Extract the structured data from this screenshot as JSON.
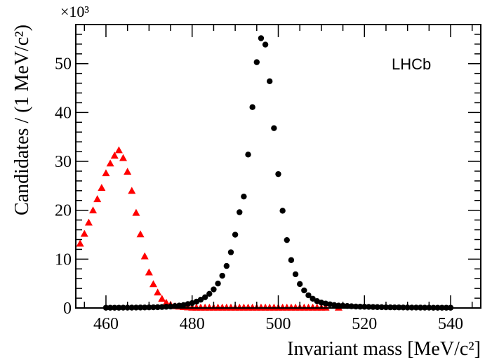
{
  "chart_data": {
    "type": "scatter",
    "xlabel": "Invariant mass [MeV/c²]",
    "ylabel": "Candidates / (1 MeV/c²)",
    "y_multiplier": "×10³",
    "annotation": "LHCb",
    "xlim": [
      453,
      547
    ],
    "ylim": [
      0,
      58
    ],
    "x_ticks": [
      460,
      480,
      500,
      520,
      540
    ],
    "y_ticks": [
      0,
      10,
      20,
      30,
      40,
      50
    ],
    "grid": false,
    "legend": "none",
    "series": [
      {
        "marker": "triangle",
        "color": "#ff0000",
        "x": [
          454,
          455,
          456,
          457,
          458,
          459,
          460,
          461,
          462,
          463,
          464,
          465,
          466,
          467,
          468,
          469,
          470,
          471,
          472,
          473,
          474,
          475,
          476,
          477,
          478,
          479,
          480,
          481,
          482,
          483,
          484,
          485,
          486,
          487,
          488,
          489,
          490,
          491,
          492,
          493,
          494,
          495,
          496,
          497,
          498,
          499,
          500,
          501,
          502,
          503,
          504,
          505,
          506,
          507,
          508,
          509,
          510,
          511,
          514
        ],
        "y": [
          13.2,
          15.2,
          17.5,
          20.0,
          22.3,
          24.6,
          27.6,
          29.6,
          31.2,
          32.3,
          30.7,
          27.9,
          24.0,
          19.5,
          15.1,
          10.6,
          7.3,
          4.9,
          3.2,
          1.9,
          1.1,
          0.7,
          0.4,
          0.3,
          0.2,
          0.15,
          0.1,
          0.1,
          0.1,
          0.1,
          0.1,
          0.1,
          0.1,
          0.1,
          0.1,
          0.1,
          0.1,
          0.1,
          0.1,
          0.1,
          0.1,
          0.1,
          0.1,
          0.1,
          0.1,
          0.1,
          0.1,
          0.1,
          0.1,
          0.1,
          0.1,
          0.1,
          0.1,
          0.1,
          0.1,
          0.1,
          0.1,
          0.1,
          0.1
        ]
      },
      {
        "marker": "circle",
        "color": "#000000",
        "x": [
          460,
          461,
          462,
          463,
          464,
          465,
          466,
          467,
          468,
          469,
          470,
          471,
          472,
          473,
          474,
          475,
          476,
          477,
          478,
          479,
          480,
          481,
          482,
          483,
          484,
          485,
          486,
          487,
          488,
          489,
          490,
          491,
          492,
          493,
          494,
          495,
          496,
          497,
          498,
          499,
          500,
          501,
          502,
          503,
          504,
          505,
          506,
          507,
          508,
          509,
          510,
          511,
          512,
          513,
          514,
          515,
          516,
          517,
          518,
          519,
          520,
          521,
          522,
          523,
          524,
          525,
          526,
          527,
          528,
          529,
          530,
          531,
          532,
          533,
          534,
          535,
          536,
          537,
          538,
          539,
          540
        ],
        "y": [
          0.05,
          0.05,
          0.05,
          0.05,
          0.06,
          0.06,
          0.07,
          0.08,
          0.09,
          0.1,
          0.12,
          0.14,
          0.16,
          0.2,
          0.25,
          0.3,
          0.4,
          0.5,
          0.6,
          0.8,
          1.0,
          1.3,
          1.7,
          2.2,
          2.9,
          3.8,
          5.0,
          6.6,
          8.6,
          11.4,
          15.0,
          19.6,
          22.8,
          31.4,
          41.1,
          50.3,
          55.2,
          53.9,
          46.4,
          36.8,
          27.4,
          19.9,
          13.9,
          9.8,
          6.9,
          4.9,
          3.6,
          2.6,
          1.9,
          1.4,
          1.1,
          0.9,
          0.75,
          0.6,
          0.5,
          0.45,
          0.4,
          0.35,
          0.3,
          0.27,
          0.25,
          0.22,
          0.2,
          0.18,
          0.16,
          0.14,
          0.13,
          0.12,
          0.11,
          0.1,
          0.09,
          0.08,
          0.08,
          0.07,
          0.06,
          0.06,
          0.05,
          0.05,
          0.05,
          0.05,
          0.05
        ]
      }
    ]
  }
}
